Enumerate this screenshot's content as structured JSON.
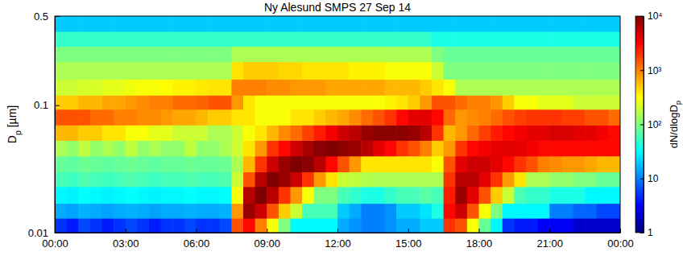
{
  "chart_data": {
    "type": "heatmap",
    "title": "Ny Alesund SMPS 27 Sep 14",
    "ylabel": "Dp [µm]",
    "log": "y",
    "grid": false,
    "xlim": [
      0,
      24
    ],
    "ylim": [
      0.01,
      0.5
    ],
    "xticks": [
      {
        "value": 0,
        "label": "00:00"
      },
      {
        "value": 3,
        "label": "03:00"
      },
      {
        "value": 6,
        "label": "06:00"
      },
      {
        "value": 9,
        "label": "09:00"
      },
      {
        "value": 12,
        "label": "12:00"
      },
      {
        "value": 15,
        "label": "15:00"
      },
      {
        "value": 18,
        "label": "18:00"
      },
      {
        "value": 21,
        "label": "21:00"
      },
      {
        "value": 24,
        "label": "00:00"
      }
    ],
    "yticks": [
      0.01,
      0.1,
      0.5
    ],
    "x": [
      0,
      0.5,
      1,
      1.5,
      2,
      2.5,
      3,
      3.5,
      4,
      4.5,
      5,
      5.5,
      6,
      6.5,
      7,
      7.5,
      8,
      8.5,
      9,
      9.5,
      10,
      10.5,
      11,
      11.5,
      12,
      12.5,
      13,
      13.5,
      14,
      14.5,
      15,
      15.5,
      16,
      16.5,
      17,
      17.5,
      18,
      18.5,
      19,
      19.5,
      20,
      20.5,
      21,
      21.5,
      22,
      22.5,
      23,
      23.5,
      24
    ],
    "y": [
      0.01,
      0.013,
      0.017,
      0.023,
      0.03,
      0.04,
      0.053,
      0.07,
      0.093,
      0.12,
      0.16,
      0.22,
      0.29,
      0.38,
      0.5
    ],
    "z": [
      [
        5,
        4,
        6,
        5,
        4,
        5,
        6,
        5,
        4,
        5,
        5,
        6,
        5,
        5,
        6,
        1500,
        3000,
        1000,
        300,
        100,
        30,
        30,
        30,
        30,
        15,
        12,
        10,
        10,
        12,
        15,
        15,
        20,
        20,
        2000,
        1500,
        300,
        80,
        30,
        5,
        4,
        4,
        3,
        3,
        3,
        2,
        2,
        2,
        2
      ],
      [
        15,
        14,
        16,
        15,
        14,
        15,
        16,
        15,
        14,
        15,
        15,
        16,
        15,
        15,
        16,
        800,
        8000,
        5000,
        1500,
        500,
        200,
        60,
        60,
        60,
        20,
        15,
        10,
        10,
        12,
        20,
        20,
        25,
        40,
        3000,
        5000,
        1500,
        300,
        100,
        30,
        30,
        30,
        30,
        10,
        10,
        8,
        8,
        6,
        6
      ],
      [
        30,
        28,
        32,
        30,
        28,
        30,
        32,
        30,
        28,
        30,
        30,
        32,
        30,
        30,
        32,
        300,
        6000,
        10000,
        6000,
        2000,
        800,
        300,
        100,
        100,
        60,
        50,
        40,
        40,
        50,
        60,
        60,
        70,
        60,
        2500,
        8000,
        4000,
        1500,
        500,
        200,
        60,
        50,
        50,
        40,
        40,
        40,
        30,
        30,
        30
      ],
      [
        60,
        55,
        65,
        60,
        55,
        60,
        65,
        60,
        55,
        60,
        60,
        65,
        60,
        60,
        65,
        200,
        1500,
        6000,
        10000,
        8000,
        5000,
        2000,
        800,
        400,
        200,
        180,
        160,
        150,
        150,
        150,
        150,
        150,
        150,
        2000,
        6000,
        6000,
        4000,
        2000,
        800,
        400,
        150,
        150,
        120,
        120,
        100,
        100,
        80,
        80
      ],
      [
        80,
        75,
        85,
        80,
        75,
        80,
        85,
        80,
        75,
        80,
        80,
        85,
        80,
        80,
        85,
        150,
        600,
        2000,
        5000,
        8000,
        10000,
        9000,
        6000,
        3000,
        1500,
        800,
        400,
        400,
        400,
        400,
        400,
        400,
        300,
        1500,
        4000,
        5000,
        5000,
        4000,
        3000,
        2000,
        1500,
        1000,
        900,
        800,
        800,
        700,
        600,
        600
      ],
      [
        150,
        120,
        180,
        120,
        150,
        120,
        180,
        120,
        150,
        120,
        120,
        180,
        120,
        120,
        150,
        200,
        400,
        800,
        2000,
        3000,
        5000,
        7000,
        9000,
        10000,
        9000,
        8000,
        6000,
        4000,
        3000,
        2000,
        1500,
        1000,
        500,
        800,
        2000,
        3000,
        3500,
        4000,
        4000,
        4000,
        3500,
        3000,
        3000,
        3000,
        3000,
        3000,
        3000,
        3000
      ],
      [
        600,
        600,
        500,
        500,
        400,
        400,
        300,
        300,
        250,
        250,
        200,
        200,
        200,
        150,
        150,
        200,
        300,
        400,
        600,
        900,
        1200,
        1800,
        2500,
        3500,
        5000,
        6000,
        8000,
        9000,
        9000,
        9000,
        8000,
        6000,
        2000,
        600,
        800,
        1200,
        1800,
        2500,
        3000,
        3500,
        4000,
        4000,
        4500,
        4500,
        4000,
        4000,
        3500,
        3000
      ],
      [
        1500,
        1500,
        1500,
        1200,
        1200,
        1000,
        1000,
        900,
        900,
        800,
        700,
        700,
        600,
        500,
        500,
        400,
        400,
        300,
        300,
        300,
        400,
        400,
        500,
        600,
        700,
        900,
        1200,
        1500,
        2000,
        3000,
        4000,
        4000,
        3000,
        1200,
        800,
        900,
        1000,
        1200,
        1500,
        1800,
        2000,
        2000,
        2000,
        1800,
        1800,
        1500,
        1500,
        1200
      ],
      [
        500,
        500,
        600,
        600,
        700,
        700,
        800,
        900,
        1000,
        1000,
        1200,
        1200,
        1300,
        1500,
        1500,
        800,
        400,
        300,
        300,
        300,
        300,
        300,
        300,
        300,
        300,
        300,
        300,
        300,
        350,
        400,
        500,
        800,
        1500,
        1500,
        1200,
        1000,
        1000,
        800,
        500,
        300,
        300,
        250,
        250,
        250,
        200,
        200,
        200,
        200
      ],
      [
        200,
        200,
        220,
        220,
        250,
        250,
        280,
        300,
        300,
        320,
        350,
        350,
        380,
        400,
        400,
        1000,
        1000,
        1000,
        900,
        900,
        800,
        800,
        800,
        700,
        700,
        700,
        700,
        700,
        600,
        600,
        600,
        500,
        400,
        300,
        150,
        150,
        150,
        150,
        150,
        150,
        150,
        150,
        150,
        150,
        150,
        150,
        150,
        150
      ],
      [
        150,
        150,
        150,
        150,
        150,
        150,
        150,
        150,
        150,
        150,
        150,
        150,
        150,
        150,
        150,
        400,
        500,
        500,
        500,
        450,
        450,
        400,
        400,
        400,
        400,
        350,
        350,
        350,
        300,
        300,
        300,
        300,
        200,
        100,
        100,
        100,
        100,
        100,
        100,
        100,
        100,
        100,
        100,
        100,
        100,
        100,
        100,
        100
      ],
      [
        100,
        100,
        100,
        100,
        100,
        100,
        100,
        100,
        100,
        100,
        100,
        100,
        100,
        100,
        100,
        150,
        150,
        150,
        150,
        150,
        150,
        150,
        150,
        150,
        150,
        150,
        150,
        150,
        150,
        150,
        150,
        150,
        100,
        80,
        80,
        80,
        80,
        80,
        80,
        80,
        80,
        80,
        80,
        80,
        80,
        80,
        80,
        80
      ],
      [
        50,
        50,
        50,
        50,
        50,
        50,
        50,
        50,
        50,
        50,
        50,
        50,
        50,
        50,
        50,
        50,
        50,
        50,
        50,
        50,
        50,
        50,
        50,
        50,
        50,
        50,
        50,
        50,
        50,
        50,
        50,
        50,
        40,
        40,
        40,
        40,
        40,
        40,
        40,
        40,
        40,
        40,
        40,
        40,
        40,
        40,
        40,
        40
      ],
      [
        20,
        20,
        20,
        20,
        20,
        20,
        20,
        20,
        20,
        20,
        20,
        20,
        20,
        20,
        20,
        20,
        20,
        20,
        20,
        20,
        20,
        20,
        20,
        20,
        20,
        20,
        20,
        20,
        20,
        20,
        20,
        20,
        20,
        20,
        20,
        20,
        20,
        20,
        20,
        20,
        20,
        20,
        20,
        20,
        20,
        20,
        20,
        20
      ]
    ],
    "colorbar": {
      "label": "dN/dlogDp",
      "range": [
        1,
        10000
      ],
      "ticks": [
        1,
        10,
        {
          "value": 100,
          "label": "10²"
        },
        {
          "value": 1000,
          "label": "10³"
        },
        {
          "value": 10000,
          "label": "10⁴"
        }
      ]
    }
  }
}
